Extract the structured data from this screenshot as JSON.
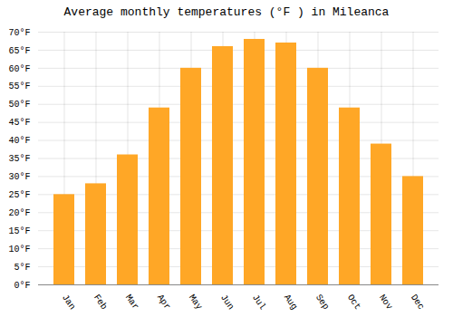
{
  "chart_data": {
    "type": "bar",
    "title": "Average monthly temperatures (°F ) in Mileanca",
    "categories": [
      "Jan",
      "Feb",
      "Mar",
      "Apr",
      "May",
      "Jun",
      "Jul",
      "Aug",
      "Sep",
      "Oct",
      "Nov",
      "Dec"
    ],
    "values": [
      25,
      28,
      36,
      49,
      60,
      66,
      68,
      67,
      60,
      49,
      39,
      30
    ],
    "color": "#FFA726",
    "ylim": [
      0,
      70
    ],
    "yticks": [
      {
        "value": 0,
        "label": "0°F"
      },
      {
        "value": 5,
        "label": "5°F"
      },
      {
        "value": 10,
        "label": "10°F"
      },
      {
        "value": 15,
        "label": "15°F"
      },
      {
        "value": 20,
        "label": "20°F"
      },
      {
        "value": 25,
        "label": "25°F"
      },
      {
        "value": 30,
        "label": "30°F"
      },
      {
        "value": 35,
        "label": "35°F"
      },
      {
        "value": 40,
        "label": "40°F"
      },
      {
        "value": 45,
        "label": "45°F"
      },
      {
        "value": 50,
        "label": "50°F"
      },
      {
        "value": 55,
        "label": "55°F"
      },
      {
        "value": 60,
        "label": "60°F"
      },
      {
        "value": 65,
        "label": "65°F"
      },
      {
        "value": 70,
        "label": "70°F"
      }
    ],
    "grid": true
  }
}
